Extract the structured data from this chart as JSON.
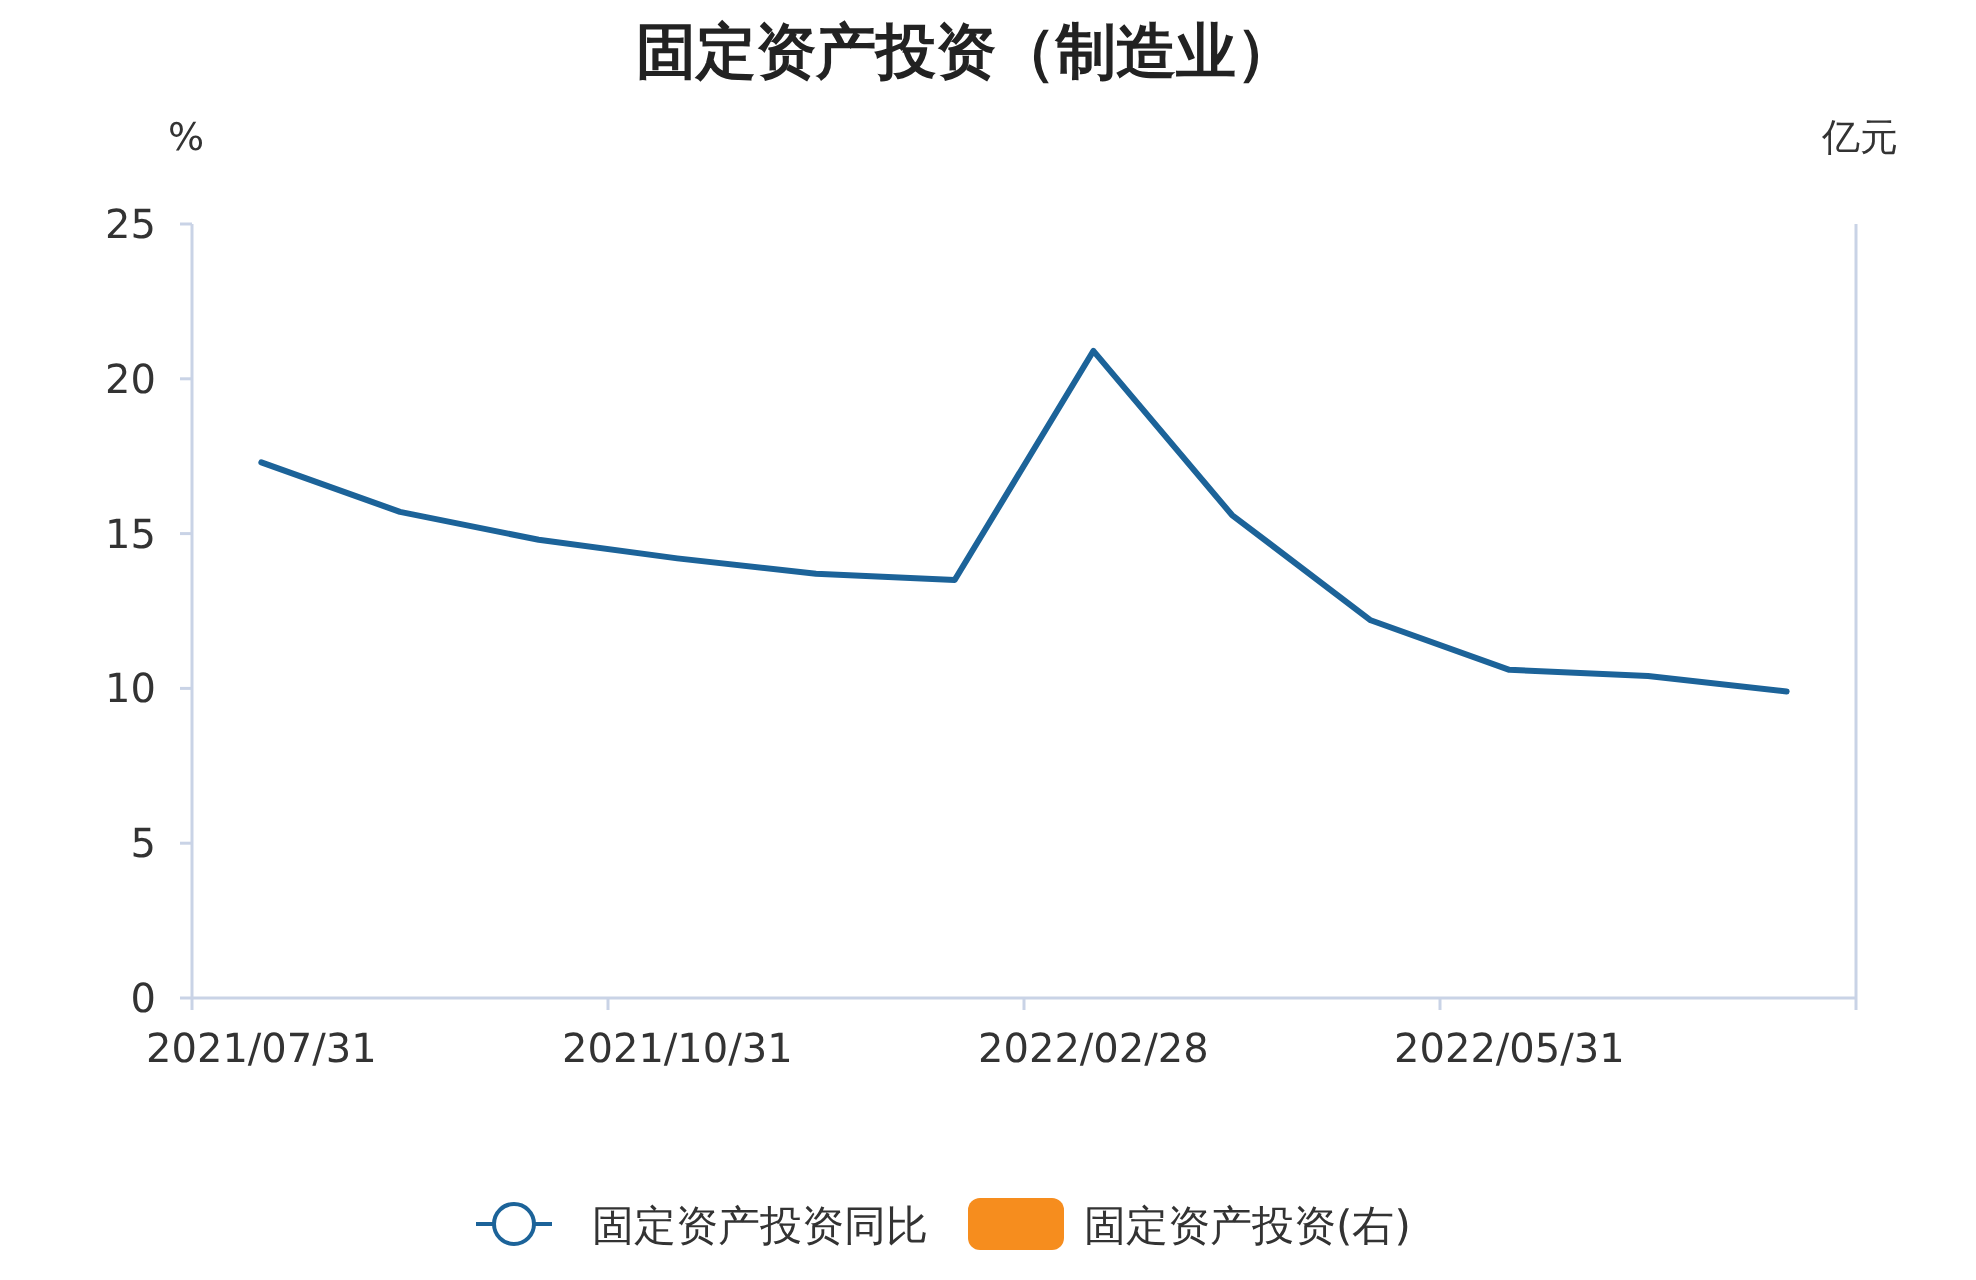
{
  "chart_data": {
    "type": "line",
    "title": "固定资产投资（制造业）",
    "ylabel": "%",
    "y2label": "亿元",
    "categories": [
      "2021/07/31",
      null,
      null,
      "2021/10/31",
      null,
      null,
      "2022/02/28",
      null,
      null,
      "2022/05/31",
      null,
      null
    ],
    "series": [
      {
        "name": "固定资产投资同比",
        "color": "#1c6399",
        "values": [
          17.3,
          15.7,
          14.8,
          14.2,
          13.7,
          13.5,
          20.9,
          15.6,
          12.2,
          10.6,
          10.4,
          9.9
        ]
      },
      {
        "name": "固定资产投资(右)",
        "color": "#f68d1e",
        "type": "bar",
        "axis": "y2",
        "values": [
          null,
          null,
          null,
          null,
          null,
          null,
          null,
          null,
          null,
          null,
          null,
          null
        ]
      }
    ],
    "ylim": [
      0,
      25
    ],
    "yticks": [
      0,
      5,
      10,
      15,
      20,
      25
    ],
    "grid": false,
    "legend": "bottom",
    "marker": "none",
    "line_style": "solid"
  }
}
